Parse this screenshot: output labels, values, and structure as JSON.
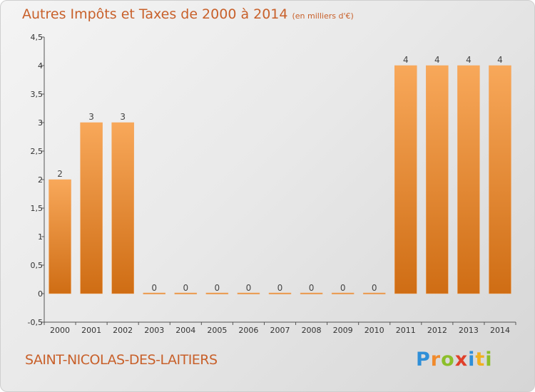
{
  "chart_data": {
    "type": "bar",
    "title": "Autres Impôts et Taxes de 2000 à 2014",
    "subtitle": "(en milliers d'€)",
    "xlabel": "",
    "ylabel": "",
    "categories": [
      "2000",
      "2001",
      "2002",
      "2003",
      "2004",
      "2005",
      "2006",
      "2007",
      "2008",
      "2009",
      "2010",
      "2011",
      "2012",
      "2013",
      "2014"
    ],
    "values": [
      2,
      3,
      3,
      0,
      0,
      0,
      0,
      0,
      0,
      0,
      0,
      4,
      4,
      4,
      4
    ],
    "data_labels": [
      "2",
      "3",
      "3",
      "0",
      "0",
      "0",
      "0",
      "0",
      "0",
      "0",
      "0",
      "4",
      "4",
      "4",
      "4"
    ],
    "ylim": [
      -0.5,
      4.5
    ],
    "yticks": [
      -0.5,
      0,
      0.5,
      1,
      1.5,
      2,
      2.5,
      3,
      3.5,
      4,
      4.5
    ],
    "ytick_labels": [
      "-0,5",
      "0",
      "0,5",
      "1",
      "1,5",
      "2",
      "2,5",
      "3",
      "3,5",
      "4",
      "4,5"
    ],
    "grid": false,
    "legend": "none",
    "bar_color": "#f08a2c"
  },
  "footer": {
    "commune": "SAINT-NICOLAS-DES-LAITIERS",
    "logo_letters": [
      {
        "ch": "P",
        "color": "#2f8fd8"
      },
      {
        "ch": "r",
        "color": "#f08a2c"
      },
      {
        "ch": "o",
        "color": "#8cbf2a"
      },
      {
        "ch": "x",
        "color": "#e0402a"
      },
      {
        "ch": "i",
        "color": "#2f8fd8"
      },
      {
        "ch": "t",
        "color": "#f0b020"
      },
      {
        "ch": "i",
        "color": "#8cbf2a"
      }
    ]
  }
}
